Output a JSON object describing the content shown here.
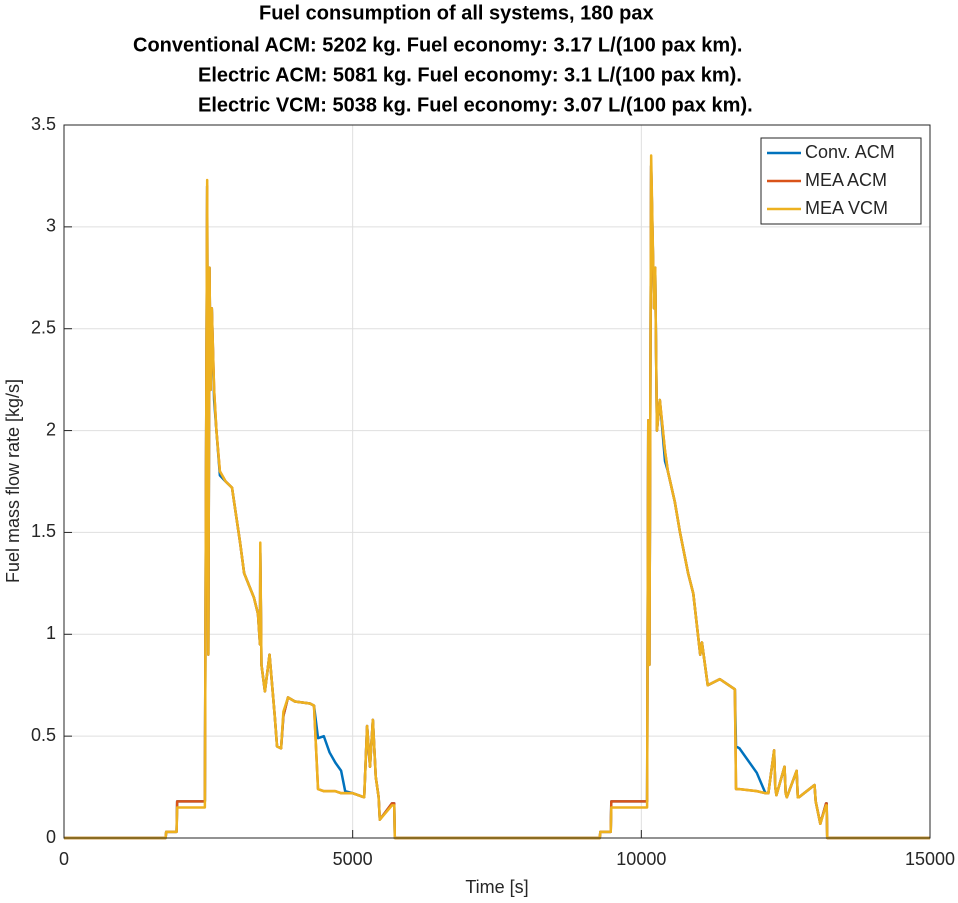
{
  "chart_data": {
    "type": "line",
    "title": [
      "Fuel consumption of all systems, 180 pax",
      "Conventional ACM: 5202 kg. Fuel economy: 3.17 L/(100 pax km).",
      "Electric ACM: 5081 kg. Fuel economy: 3.1 L/(100 pax km).",
      "Electric VCM: 5038 kg. Fuel economy: 3.07 L/(100 pax km)."
    ],
    "x_label": "Time [s]",
    "y_label": "Fuel mass flow rate [kg/s]",
    "x": [
      0,
      1760,
      1770,
      1950,
      1960,
      2440,
      2460,
      2480,
      2500,
      2520,
      2540,
      2560,
      2600,
      2640,
      2700,
      2800,
      2910,
      3050,
      3120,
      3290,
      3360,
      3395,
      3400,
      3420,
      3480,
      3560,
      3650,
      3690,
      3760,
      3800,
      3880,
      4000,
      4260,
      4330,
      4400,
      4500,
      4600,
      4700,
      4800,
      4870,
      5000,
      5200,
      5250,
      5300,
      5350,
      5400,
      5450,
      5470,
      5680,
      5720,
      5730,
      9280,
      9290,
      9470,
      9480,
      10100,
      10120,
      10140,
      10170,
      10220,
      10240,
      10270,
      10320,
      10410,
      10460,
      10580,
      10670,
      10810,
      10900,
      11020,
      11050,
      11150,
      11360,
      11620,
      11640,
      11700,
      12000,
      12150,
      12200,
      12300,
      12320,
      12340,
      12480,
      12500,
      12520,
      12690,
      12710,
      12730,
      13000,
      13020,
      13100,
      13200,
      13210,
      13220,
      15000
    ],
    "series": [
      {
        "name": "Conv. ACM",
        "color": "#0072bd",
        "values": [
          0,
          0,
          0.03,
          0.03,
          0.18,
          0.18,
          1.8,
          3.2,
          0.9,
          2.8,
          2.2,
          2.6,
          2.15,
          2.0,
          1.78,
          1.75,
          1.72,
          1.45,
          1.3,
          1.18,
          1.1,
          0.95,
          1.4,
          0.85,
          0.72,
          0.9,
          0.6,
          0.45,
          0.44,
          0.6,
          0.69,
          0.67,
          0.66,
          0.65,
          0.49,
          0.5,
          0.42,
          0.37,
          0.33,
          0.23,
          0.22,
          0.2,
          0.55,
          0.35,
          0.58,
          0.3,
          0.2,
          0.09,
          0.17,
          0.17,
          0,
          0,
          0.03,
          0.03,
          0.18,
          0.18,
          2.05,
          0.85,
          3.3,
          2.6,
          2.8,
          2.0,
          2.15,
          1.85,
          1.8,
          1.65,
          1.5,
          1.3,
          1.2,
          0.9,
          0.96,
          0.75,
          0.78,
          0.73,
          0.45,
          0.44,
          0.32,
          0.22,
          0.22,
          0.43,
          0.25,
          0.21,
          0.35,
          0.22,
          0.2,
          0.33,
          0.2,
          0.2,
          0.26,
          0.18,
          0.07,
          0.17,
          0.17,
          0,
          0
        ]
      },
      {
        "name": "MEA ACM",
        "color": "#d95319",
        "values": [
          0,
          0,
          0.03,
          0.03,
          0.18,
          0.18,
          1.8,
          3.2,
          0.9,
          2.8,
          2.2,
          2.6,
          2.2,
          2.0,
          1.8,
          1.75,
          1.72,
          1.45,
          1.3,
          1.18,
          1.1,
          0.95,
          1.4,
          0.85,
          0.72,
          0.9,
          0.6,
          0.45,
          0.44,
          0.6,
          0.69,
          0.67,
          0.66,
          0.65,
          0.24,
          0.23,
          0.23,
          0.23,
          0.22,
          0.22,
          0.22,
          0.2,
          0.55,
          0.35,
          0.58,
          0.3,
          0.2,
          0.09,
          0.17,
          0.17,
          0,
          0,
          0.03,
          0.03,
          0.18,
          0.18,
          2.05,
          0.85,
          3.3,
          2.6,
          2.8,
          2.0,
          2.15,
          1.9,
          1.8,
          1.65,
          1.5,
          1.3,
          1.2,
          0.9,
          0.96,
          0.75,
          0.78,
          0.73,
          0.24,
          0.24,
          0.23,
          0.22,
          0.22,
          0.43,
          0.25,
          0.21,
          0.35,
          0.22,
          0.2,
          0.33,
          0.2,
          0.2,
          0.26,
          0.18,
          0.07,
          0.17,
          0.17,
          0,
          0
        ]
      },
      {
        "name": "MEA VCM",
        "color": "#edb120",
        "values": [
          0,
          0,
          0.03,
          0.03,
          0.15,
          0.15,
          1.8,
          3.23,
          0.9,
          2.8,
          2.2,
          2.6,
          2.2,
          2.0,
          1.8,
          1.75,
          1.72,
          1.45,
          1.3,
          1.18,
          1.1,
          0.95,
          1.45,
          0.85,
          0.72,
          0.9,
          0.6,
          0.45,
          0.44,
          0.62,
          0.69,
          0.67,
          0.66,
          0.65,
          0.24,
          0.23,
          0.23,
          0.23,
          0.22,
          0.22,
          0.22,
          0.2,
          0.55,
          0.35,
          0.58,
          0.3,
          0.2,
          0.09,
          0.16,
          0.16,
          0,
          0,
          0.03,
          0.03,
          0.15,
          0.15,
          2.05,
          0.85,
          3.35,
          2.6,
          2.8,
          2.0,
          2.15,
          1.9,
          1.8,
          1.65,
          1.5,
          1.3,
          1.2,
          0.9,
          0.96,
          0.75,
          0.78,
          0.73,
          0.24,
          0.24,
          0.23,
          0.22,
          0.22,
          0.43,
          0.25,
          0.21,
          0.35,
          0.22,
          0.2,
          0.33,
          0.2,
          0.2,
          0.26,
          0.18,
          0.07,
          0.16,
          0.16,
          0,
          0
        ]
      }
    ],
    "xlim": [
      0,
      15000
    ],
    "xticks": [
      0,
      5000,
      10000,
      15000
    ],
    "ylim": [
      0,
      3.5
    ],
    "yticks": [
      0,
      0.5,
      1,
      1.5,
      2,
      2.5,
      3,
      3.5
    ],
    "grid": true,
    "legend": "upper-right"
  }
}
